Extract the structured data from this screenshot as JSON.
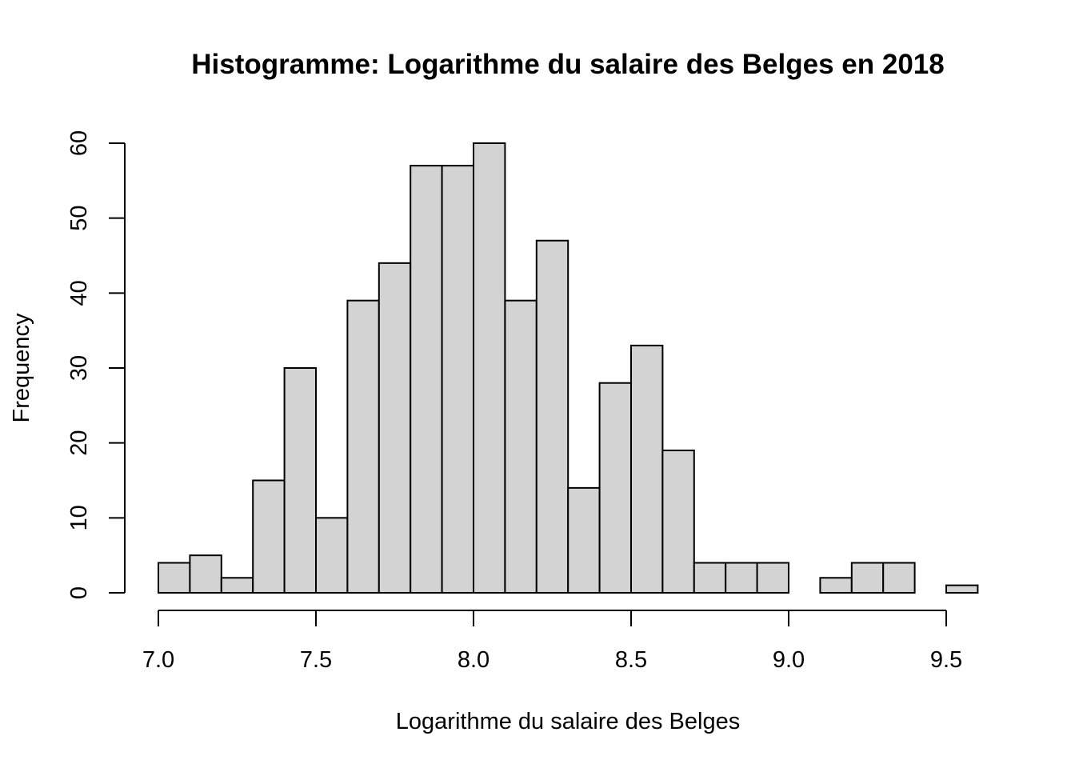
{
  "chart_data": {
    "type": "bar",
    "subtype": "histogram",
    "title": "Histogramme: Logarithme du salaire des Belges en 2018",
    "xlabel": "Logarithme du salaire des Belges",
    "ylabel": "Frequency",
    "bin_width": 0.1,
    "bins": [
      {
        "start": 7.0,
        "end": 7.1,
        "count": 4
      },
      {
        "start": 7.1,
        "end": 7.2,
        "count": 5
      },
      {
        "start": 7.2,
        "end": 7.3,
        "count": 2
      },
      {
        "start": 7.3,
        "end": 7.4,
        "count": 15
      },
      {
        "start": 7.4,
        "end": 7.5,
        "count": 30
      },
      {
        "start": 7.5,
        "end": 7.6,
        "count": 10
      },
      {
        "start": 7.6,
        "end": 7.7,
        "count": 39
      },
      {
        "start": 7.7,
        "end": 7.8,
        "count": 44
      },
      {
        "start": 7.8,
        "end": 7.9,
        "count": 57
      },
      {
        "start": 7.9,
        "end": 8.0,
        "count": 57
      },
      {
        "start": 8.0,
        "end": 8.1,
        "count": 60
      },
      {
        "start": 8.1,
        "end": 8.2,
        "count": 39
      },
      {
        "start": 8.2,
        "end": 8.3,
        "count": 47
      },
      {
        "start": 8.3,
        "end": 8.4,
        "count": 14
      },
      {
        "start": 8.4,
        "end": 8.5,
        "count": 28
      },
      {
        "start": 8.5,
        "end": 8.6,
        "count": 33
      },
      {
        "start": 8.6,
        "end": 8.7,
        "count": 19
      },
      {
        "start": 8.7,
        "end": 8.8,
        "count": 4
      },
      {
        "start": 8.8,
        "end": 8.9,
        "count": 4
      },
      {
        "start": 8.9,
        "end": 9.0,
        "count": 4
      },
      {
        "start": 9.0,
        "end": 9.1,
        "count": 0
      },
      {
        "start": 9.1,
        "end": 9.2,
        "count": 2
      },
      {
        "start": 9.2,
        "end": 9.3,
        "count": 4
      },
      {
        "start": 9.3,
        "end": 9.4,
        "count": 4
      },
      {
        "start": 9.4,
        "end": 9.5,
        "count": 0
      },
      {
        "start": 9.5,
        "end": 9.6,
        "count": 1
      }
    ],
    "x_ticks": [
      "7.0",
      "7.5",
      "8.0",
      "8.5",
      "9.0",
      "9.5"
    ],
    "y_ticks": [
      "0",
      "10",
      "20",
      "30",
      "40",
      "50",
      "60"
    ],
    "xlim": [
      7.0,
      9.5
    ],
    "ylim": [
      0,
      60
    ],
    "grid": false,
    "legend": "none",
    "bar_fill": "#d3d3d3",
    "bar_edge": "#000000"
  }
}
